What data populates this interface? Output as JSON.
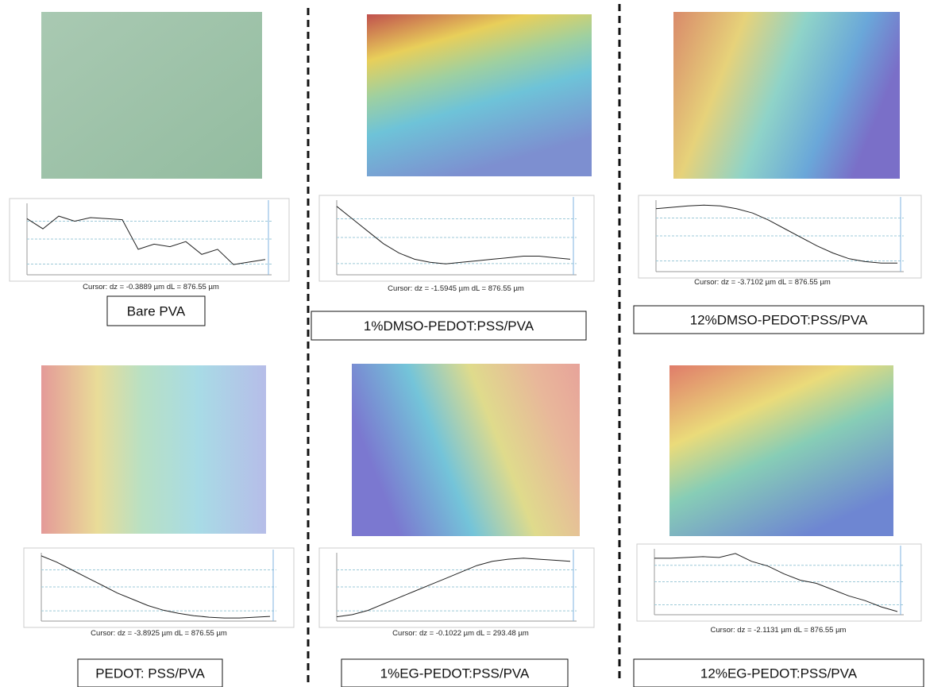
{
  "panels": [
    {
      "label": "Bare PVA",
      "cursor": "Cursor: dz = -0.3889 µm  dL = 876.55 µm",
      "profile": {
        "values": [
          0.1,
          -0.1,
          0.15,
          0.05,
          0.12,
          0.1,
          0.08,
          -0.5,
          -0.4,
          -0.45,
          -0.35,
          -0.6,
          -0.5,
          -0.8,
          -0.75,
          -0.7
        ],
        "ylim": [
          -1,
          0.4
        ]
      }
    },
    {
      "label": "1%DMSO-PEDOT:PSS/PVA",
      "cursor": "Cursor: dz = -1.5945 µm  dL = 876.55 µm",
      "profile": {
        "values": [
          1.2,
          0.8,
          0.4,
          0.0,
          -0.3,
          -0.5,
          -0.6,
          -0.65,
          -0.6,
          -0.55,
          -0.5,
          -0.45,
          -0.4,
          -0.4,
          -0.45,
          -0.5
        ],
        "ylim": [
          -1,
          1.4
        ]
      }
    },
    {
      "label": "12%DMSO-PEDOT:PSS/PVA",
      "cursor": "Cursor: dz = -3.7102 µm  dL = 876.55 µm",
      "profile": {
        "values": [
          1.6,
          1.7,
          1.8,
          1.85,
          1.8,
          1.6,
          1.3,
          0.8,
          0.2,
          -0.4,
          -1.0,
          -1.5,
          -1.9,
          -2.1,
          -2.2,
          -2.2
        ],
        "ylim": [
          -2.8,
          2.2
        ]
      }
    },
    {
      "label": "PEDOT: PSS/PVA",
      "cursor": "Cursor: dz = -3.8925 µm  dL = 876.55 µm",
      "profile": {
        "values": [
          2.0,
          1.6,
          1.1,
          0.6,
          0.1,
          -0.4,
          -0.8,
          -1.2,
          -1.5,
          -1.7,
          -1.85,
          -1.95,
          -2.0,
          -2.0,
          -1.95,
          -1.9
        ],
        "ylim": [
          -2.2,
          2.2
        ]
      }
    },
    {
      "label": "1%EG-PEDOT:PSS/PVA",
      "cursor": "Cursor: dz = -0.1022 µm  dL = 293.48 µm",
      "profile": {
        "values": [
          -1.6,
          -1.5,
          -1.3,
          -1.0,
          -0.7,
          -0.4,
          -0.1,
          0.2,
          0.5,
          0.8,
          1.0,
          1.1,
          1.15,
          1.1,
          1.05,
          1.0
        ],
        "ylim": [
          -1.8,
          1.4
        ]
      }
    },
    {
      "label": "12%EG-PEDOT:PSS/PVA",
      "cursor": "Cursor: dz = -2.1131 µm  dL = 876.55 µm",
      "profile": {
        "values": [
          1.2,
          1.2,
          1.25,
          1.3,
          1.25,
          1.5,
          1.0,
          0.7,
          0.2,
          -0.2,
          -0.4,
          -0.8,
          -1.2,
          -1.5,
          -1.9,
          -2.2
        ],
        "ylim": [
          -2.4,
          1.8
        ]
      }
    }
  ]
}
